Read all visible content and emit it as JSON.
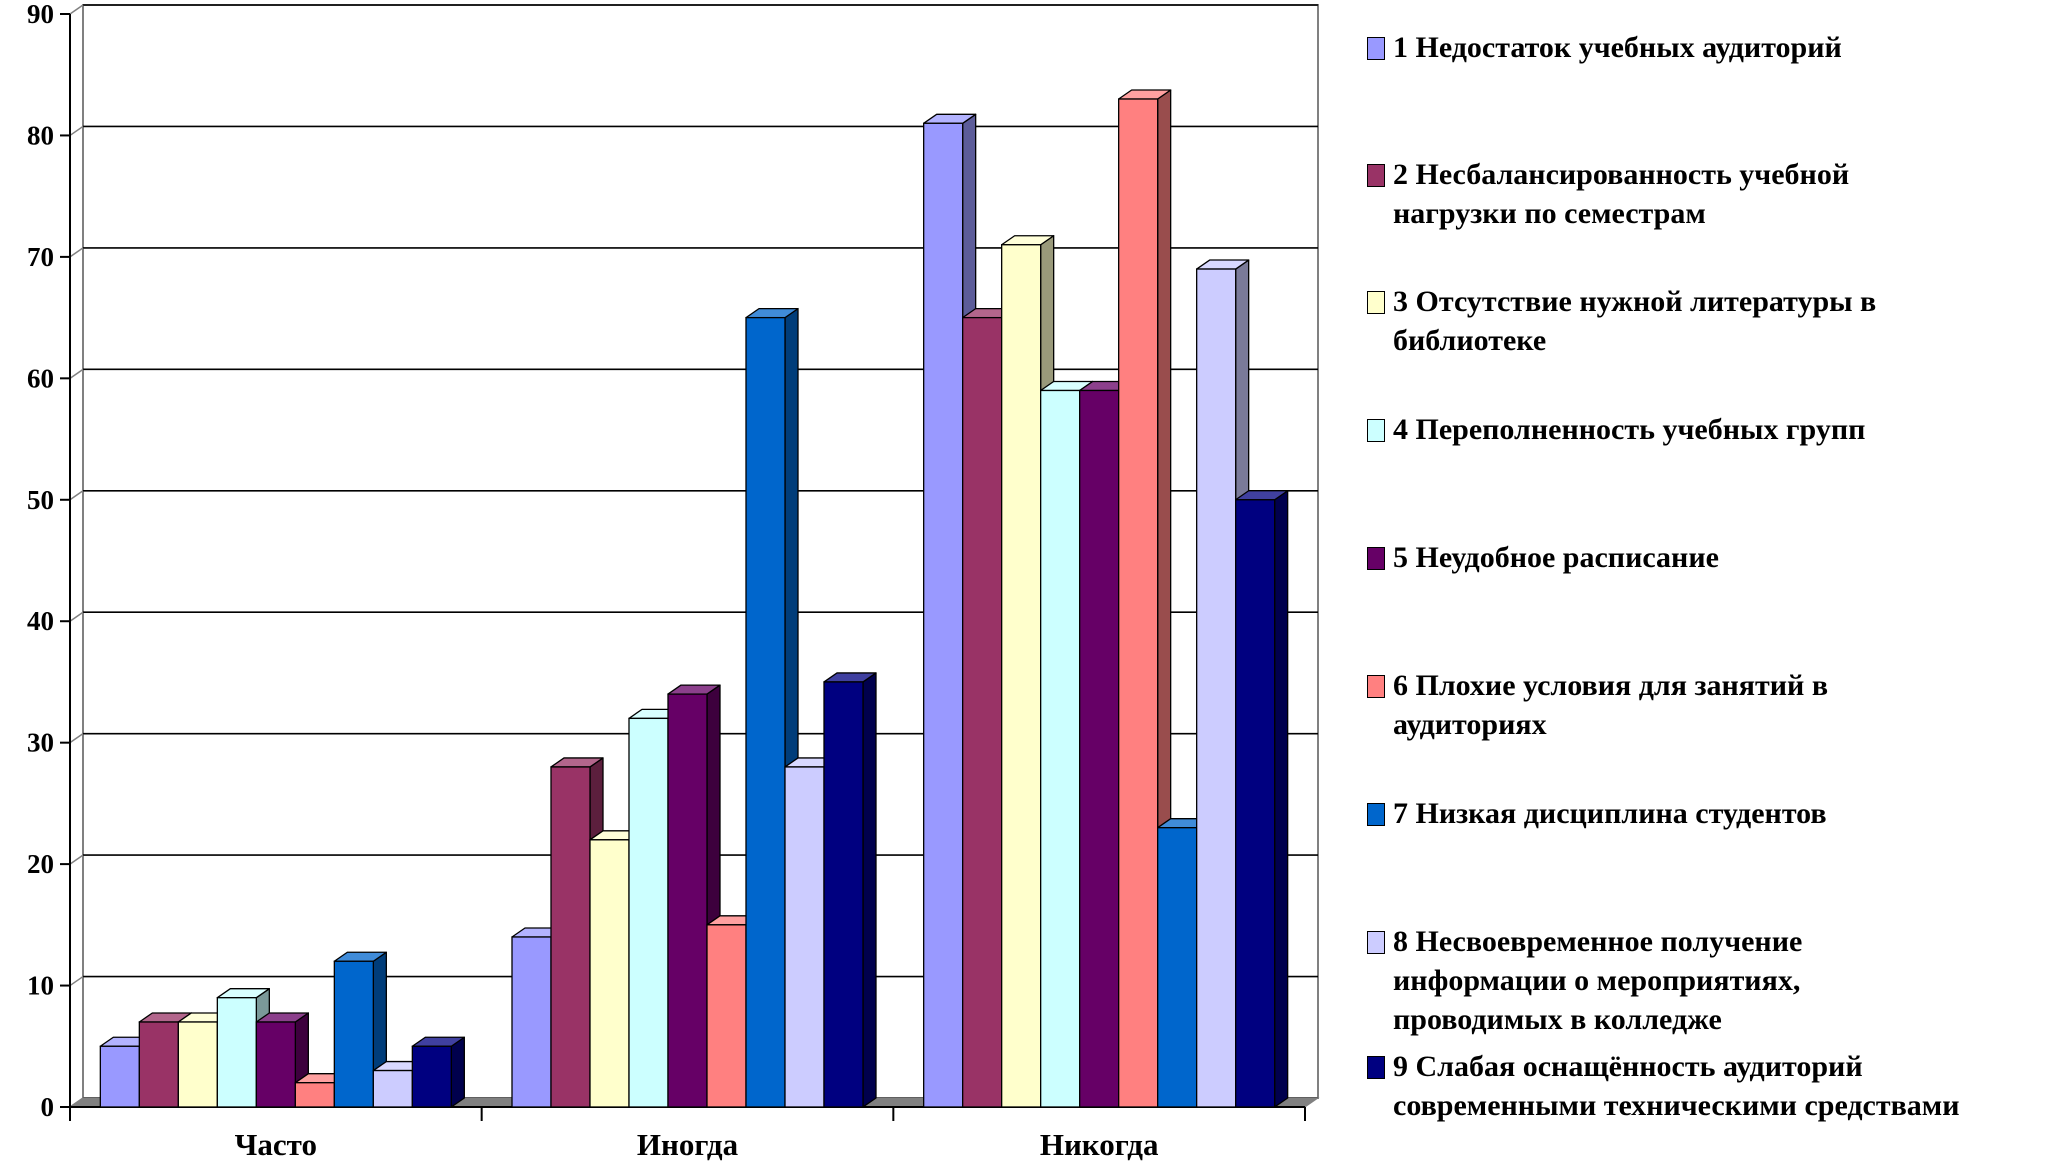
{
  "chart_data": {
    "type": "bar",
    "categories": [
      "Часто",
      "Иногда",
      "Никогда"
    ],
    "ylim": [
      0,
      90
    ],
    "yticks": [
      0,
      10,
      20,
      30,
      40,
      50,
      60,
      70,
      80,
      90
    ],
    "grid": true,
    "legend_position": "right",
    "series": [
      {
        "name": "1 Недостаток учебных аудиторий",
        "color": "#9999ff",
        "values": [
          5,
          14,
          81
        ]
      },
      {
        "name": "2 Несбалансированность учебной нагрузки по семестрам",
        "color": "#993366",
        "values": [
          7,
          28,
          65
        ]
      },
      {
        "name": "3 Отсутствие нужной литературы в библиотеке",
        "color": "#ffffcc",
        "values": [
          7,
          22,
          71
        ]
      },
      {
        "name": "4 Переполненность учебных групп",
        "color": "#ccffff",
        "values": [
          9,
          32,
          59
        ]
      },
      {
        "name": "5 Неудобное расписание",
        "color": "#660066",
        "values": [
          7,
          34,
          59
        ]
      },
      {
        "name": "6 Плохие условия для занятий в аудиториях",
        "color": "#ff8080",
        "values": [
          2,
          15,
          83
        ]
      },
      {
        "name": "7 Низкая дисциплина студентов",
        "color": "#0066cc",
        "values": [
          12,
          65,
          23
        ]
      },
      {
        "name": "8 Несвоевременное получение информации о мероприятиях, проводимых  в колледже",
        "color": "#ccccff",
        "values": [
          3,
          28,
          69
        ]
      },
      {
        "name": "9 Слабая оснащённость аудиторий современными техническими средствами",
        "color": "#000080",
        "values": [
          5,
          35,
          50
        ]
      }
    ]
  }
}
